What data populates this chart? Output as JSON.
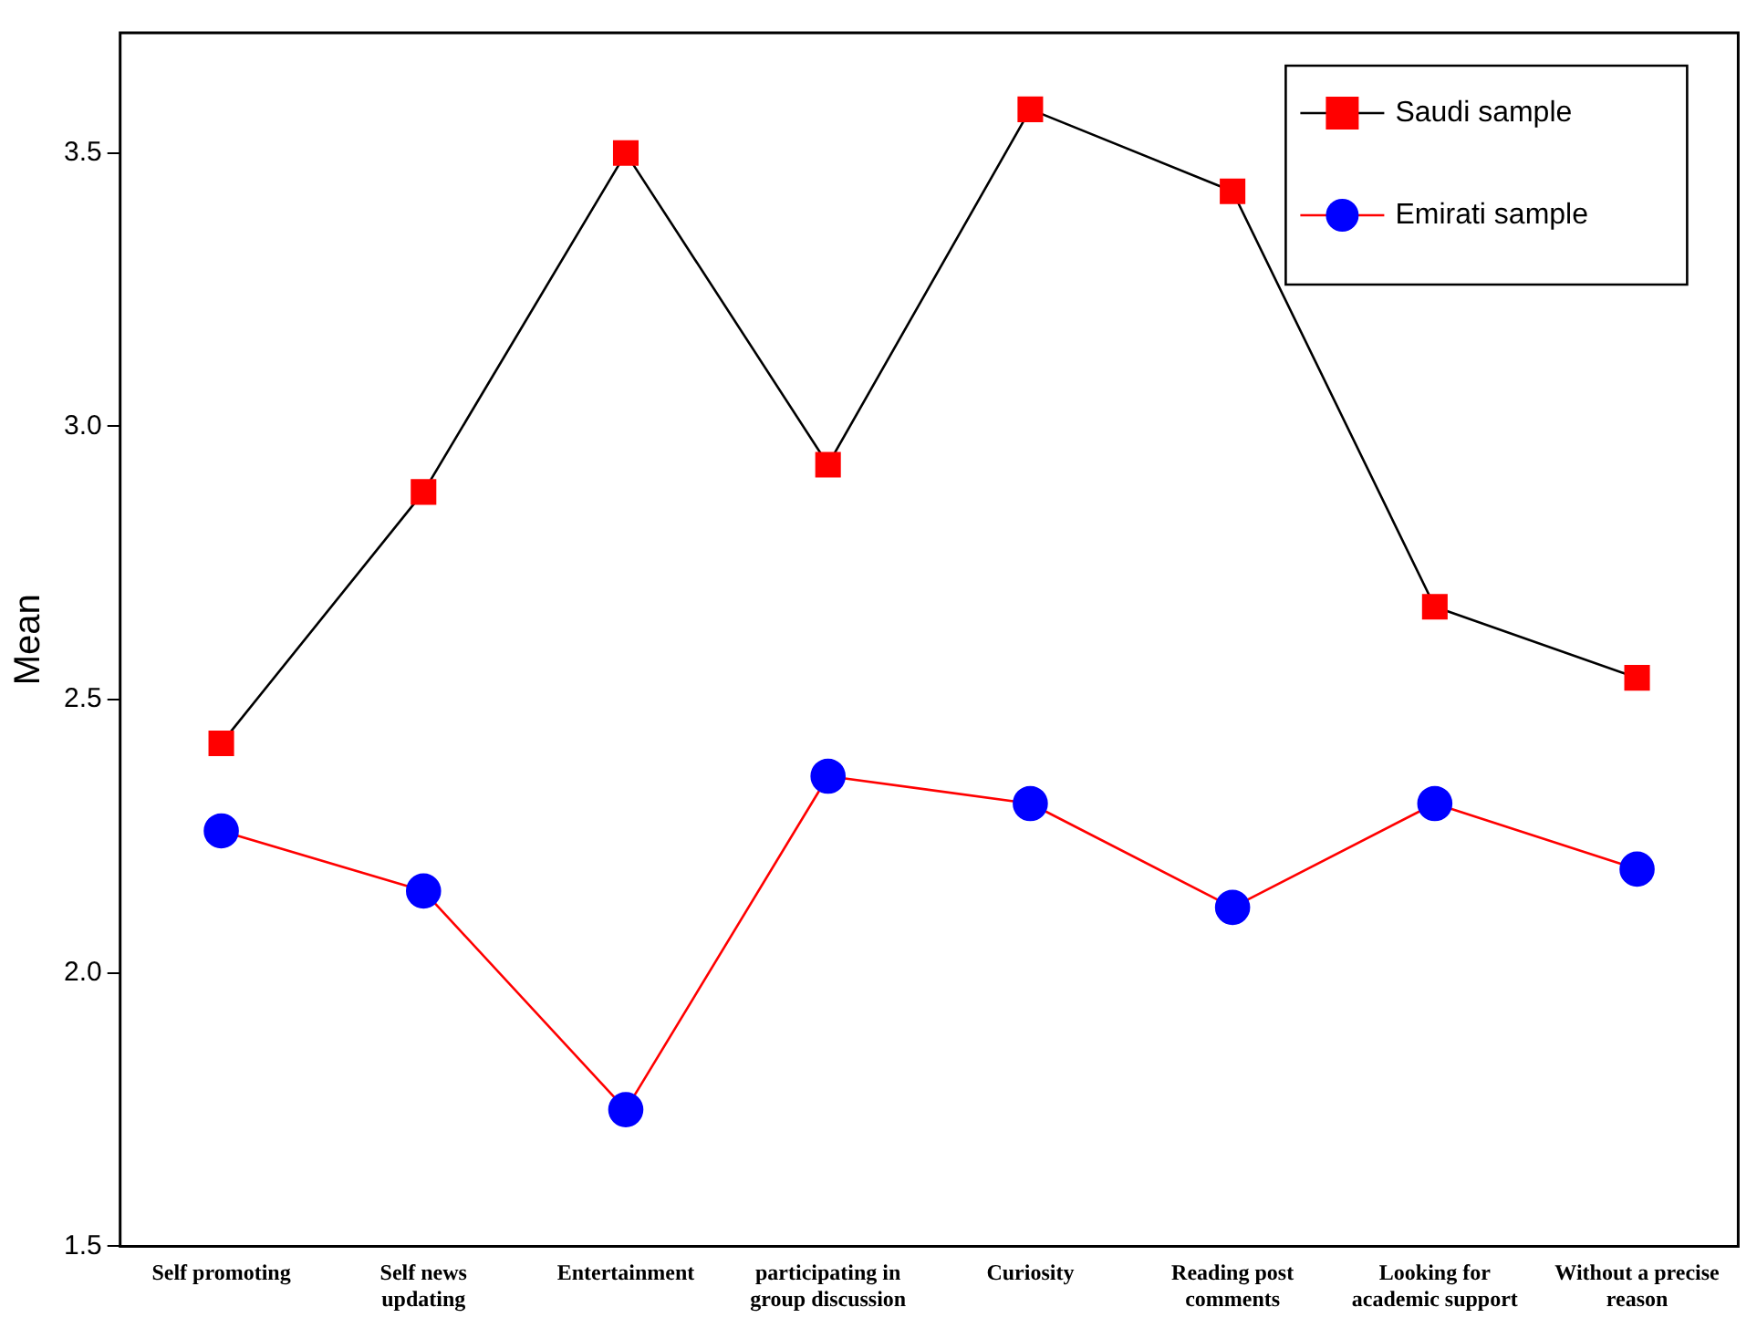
{
  "chart_data": {
    "type": "line",
    "ylabel": "Mean",
    "categories": [
      "Self promoting",
      "Self news updating",
      "Entertainment",
      "participating in group discussion",
      "Curiosity",
      "Reading post comments",
      "Looking for academic support",
      "Without a precise reason"
    ],
    "series": [
      {
        "name": "Saudi sample",
        "color": "#000000",
        "colors": [
          "#ff0000",
          "#ff0000",
          "#ff0000",
          "#ff0000",
          "#ff0000",
          "#ff0000",
          "#ff0000",
          "#ff0000"
        ],
        "marker": "square",
        "values": [
          2.42,
          2.88,
          3.5,
          2.93,
          3.58,
          3.43,
          2.67,
          2.54
        ]
      },
      {
        "name": "Emirati sample",
        "color": "#ff0000",
        "colors": [
          "#0000ff",
          "#0000ff",
          "#0000ff",
          "#0000ff",
          "#0000ff",
          "#0000ff",
          "#0000ff",
          "#0000ff"
        ],
        "marker": "circle",
        "values": [
          2.26,
          2.15,
          1.75,
          2.36,
          2.31,
          2.12,
          2.31,
          2.19
        ]
      }
    ],
    "ylim": [
      1.5,
      3.72
    ],
    "yticks": [
      {
        "value": 1.5,
        "label": "1.5"
      },
      {
        "value": 2,
        "label": "2.0"
      },
      {
        "value": 2.5,
        "label": "2.5"
      },
      {
        "value": 3,
        "label": "3.0"
      },
      {
        "value": 3.5,
        "label": "3.5"
      }
    ],
    "grid": false,
    "legend": "top right",
    "line_style": "solid"
  }
}
